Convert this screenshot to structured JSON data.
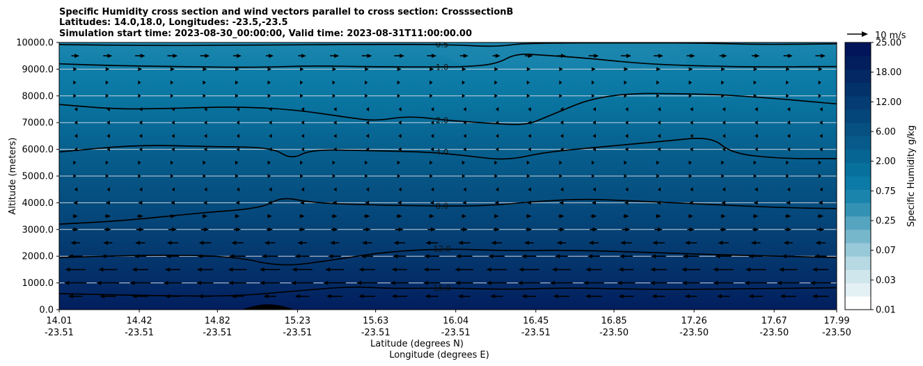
{
  "chart_data": {
    "type": "contour-cross-section",
    "title_lines": [
      "Specific Humidity cross section and wind vectors parallel to cross section: CrosssectionB",
      "Latitudes: 14.0,18.0, Longitudes: -23.5,-23.5",
      "Simulation start time: 2023-08-30_00:00:00, Valid time: 2023-08-31T11:00:00.00"
    ],
    "xlabel_lat": "Latitude (degrees N)",
    "xlabel_lon": "Longitude (degrees E)",
    "ylabel": "Altitude (meters)",
    "ylim": [
      0,
      10000
    ],
    "y_ticks": [
      "0.0",
      "1000.0",
      "2000.0",
      "3000.0",
      "4000.0",
      "5000.0",
      "6000.0",
      "7000.0",
      "8000.0",
      "9000.0",
      "10000.0"
    ],
    "y_tick_values": [
      0,
      1000,
      2000,
      3000,
      4000,
      5000,
      6000,
      7000,
      8000,
      9000,
      10000
    ],
    "x_ticks": [
      {
        "lat": "14.01",
        "lon": "-23.51"
      },
      {
        "lat": "14.42",
        "lon": "-23.51"
      },
      {
        "lat": "14.82",
        "lon": "-23.51"
      },
      {
        "lat": "15.23",
        "lon": "-23.51"
      },
      {
        "lat": "15.63",
        "lon": "-23.51"
      },
      {
        "lat": "16.04",
        "lon": "-23.51"
      },
      {
        "lat": "16.45",
        "lon": "-23.51"
      },
      {
        "lat": "16.85",
        "lon": "-23.50"
      },
      {
        "lat": "17.26",
        "lon": "-23.50"
      },
      {
        "lat": "17.67",
        "lon": "-23.50"
      },
      {
        "lat": "17.99",
        "lon": "-23.50"
      }
    ],
    "x_tick_values": [
      14.01,
      14.42,
      14.82,
      15.23,
      15.63,
      16.04,
      16.45,
      16.85,
      17.26,
      17.67,
      17.99
    ],
    "colorbar_label": "Specific Humidity g/kg",
    "colorbar_ticks": [
      "0.01",
      "0.03",
      "0.07",
      "0.25",
      "0.75",
      "2.00",
      "6.00",
      "12.00",
      "18.00",
      "25.00"
    ],
    "colorbar_colors": [
      "#ffffff",
      "#e4f1f4",
      "#cfe6ec",
      "#b6d9e3",
      "#98c9d8",
      "#77b7cc",
      "#55a4c0",
      "#3392b4",
      "#1a84ac",
      "#0c7aa6",
      "#08709c",
      "#076593",
      "#075b8a",
      "#065182",
      "#05467a",
      "#043c73",
      "#03326b",
      "#032864",
      "#021e5c",
      "#02145a"
    ],
    "band_colors": [
      {
        "y": 10000,
        "c": "#1d87ae"
      },
      {
        "y": 9000,
        "c": "#0f7ea9"
      },
      {
        "y": 8000,
        "c": "#0a77a2"
      },
      {
        "y": 7000,
        "c": "#086b98"
      },
      {
        "y": 6000,
        "c": "#07608e"
      },
      {
        "y": 5000,
        "c": "#065686"
      },
      {
        "y": 4000,
        "c": "#054c7e"
      },
      {
        "y": 3000,
        "c": "#054276"
      },
      {
        "y": 2000,
        "c": "#04376e"
      },
      {
        "y": 1000,
        "c": "#032c67"
      },
      {
        "y": 0,
        "c": "#021d5d"
      }
    ],
    "contours": [
      {
        "level": "0.5",
        "points": [
          [
            14.01,
            9920
          ],
          [
            14.5,
            9880
          ],
          [
            15.0,
            9900
          ],
          [
            15.63,
            9930
          ],
          [
            16.0,
            9920
          ],
          [
            16.2,
            9850
          ],
          [
            16.3,
            9880
          ],
          [
            16.4,
            9980
          ],
          [
            17.0,
            9990
          ],
          [
            17.3,
            9980
          ],
          [
            17.6,
            9920
          ],
          [
            17.99,
            9950
          ]
        ]
      },
      {
        "level": "1.0",
        "points": [
          [
            14.01,
            9200
          ],
          [
            14.3,
            9130
          ],
          [
            14.6,
            9100
          ],
          [
            15.0,
            9060
          ],
          [
            15.3,
            9130
          ],
          [
            15.6,
            9090
          ],
          [
            15.9,
            9080
          ],
          [
            16.1,
            9090
          ],
          [
            16.25,
            9200
          ],
          [
            16.35,
            9590
          ],
          [
            16.5,
            9520
          ],
          [
            16.7,
            9420
          ],
          [
            17.0,
            9200
          ],
          [
            17.3,
            9120
          ],
          [
            17.6,
            9080
          ],
          [
            17.99,
            9100
          ]
        ]
      },
      {
        "level": "2.0",
        "points": [
          [
            14.01,
            7680
          ],
          [
            14.3,
            7500
          ],
          [
            14.6,
            7530
          ],
          [
            14.9,
            7600
          ],
          [
            15.2,
            7500
          ],
          [
            15.5,
            7180
          ],
          [
            15.63,
            7060
          ],
          [
            15.8,
            7250
          ],
          [
            16.0,
            7080
          ],
          [
            16.2,
            6980
          ],
          [
            16.4,
            6900
          ],
          [
            16.5,
            7200
          ],
          [
            16.8,
            8100
          ],
          [
            17.3,
            8080
          ],
          [
            17.6,
            7950
          ],
          [
            17.99,
            7700
          ]
        ]
      },
      {
        "level": "4.0",
        "points": [
          [
            14.01,
            5900
          ],
          [
            14.4,
            6170
          ],
          [
            14.8,
            6100
          ],
          [
            15.1,
            6070
          ],
          [
            15.2,
            5620
          ],
          [
            15.3,
            6000
          ],
          [
            15.6,
            5950
          ],
          [
            15.9,
            5900
          ],
          [
            16.1,
            5760
          ],
          [
            16.3,
            5580
          ],
          [
            16.5,
            5900
          ],
          [
            16.8,
            6100
          ],
          [
            17.1,
            6300
          ],
          [
            17.35,
            6480
          ],
          [
            17.45,
            5850
          ],
          [
            17.7,
            5650
          ],
          [
            17.99,
            5650
          ]
        ]
      },
      {
        "level": "8.0",
        "points": [
          [
            14.01,
            3200
          ],
          [
            14.35,
            3330
          ],
          [
            14.7,
            3600
          ],
          [
            15.05,
            3800
          ],
          [
            15.15,
            4230
          ],
          [
            15.3,
            4000
          ],
          [
            15.6,
            3920
          ],
          [
            15.9,
            3880
          ],
          [
            16.2,
            3880
          ],
          [
            16.45,
            4050
          ],
          [
            16.7,
            4150
          ],
          [
            17.0,
            4050
          ],
          [
            17.3,
            3950
          ],
          [
            17.7,
            3820
          ],
          [
            17.99,
            3780
          ]
        ]
      },
      {
        "level": "12.0",
        "points": [
          [
            14.01,
            1950
          ],
          [
            14.5,
            2050
          ],
          [
            14.9,
            2000
          ],
          [
            15.15,
            1600
          ],
          [
            15.4,
            1850
          ],
          [
            15.7,
            2180
          ],
          [
            16.0,
            2280
          ],
          [
            16.3,
            2200
          ],
          [
            16.6,
            2230
          ],
          [
            17.0,
            2150
          ],
          [
            17.4,
            2050
          ],
          [
            17.99,
            1950
          ]
        ]
      },
      {
        "level": "16.0",
        "points": [
          [
            14.01,
            600
          ],
          [
            14.5,
            520
          ],
          [
            14.9,
            500
          ],
          [
            15.2,
            680
          ],
          [
            15.5,
            870
          ],
          [
            15.7,
            790
          ],
          [
            16.0,
            810
          ],
          [
            16.3,
            750
          ],
          [
            16.6,
            820
          ],
          [
            17.0,
            760
          ],
          [
            17.3,
            760
          ],
          [
            17.99,
            820
          ]
        ]
      }
    ],
    "terrain": {
      "peak_lat": 15.08,
      "peak_alt": 200
    },
    "vector_key_label": "10 m/s",
    "wind_rows": [
      {
        "alt": 500,
        "u": -8
      },
      {
        "alt": 1000,
        "u": -11
      },
      {
        "alt": 1500,
        "u": -10
      },
      {
        "alt": 2000,
        "u": -8
      },
      {
        "alt": 2500,
        "u": -6
      },
      {
        "alt": 3000,
        "u": 4
      },
      {
        "alt": 3500,
        "u": 3
      },
      {
        "alt": 4000,
        "u": -2
      },
      {
        "alt": 4500,
        "u": -1
      },
      {
        "alt": 5000,
        "u": 1
      },
      {
        "alt": 5500,
        "u": 1
      },
      {
        "alt": 6000,
        "u": -1
      },
      {
        "alt": 6500,
        "u": -1
      },
      {
        "alt": 7000,
        "u": -1
      },
      {
        "alt": 7500,
        "u": -1
      },
      {
        "alt": 8000,
        "u": 1
      },
      {
        "alt": 8500,
        "u": 1
      },
      {
        "alt": 9000,
        "u": 2
      },
      {
        "alt": 9500,
        "u": 5
      }
    ]
  }
}
